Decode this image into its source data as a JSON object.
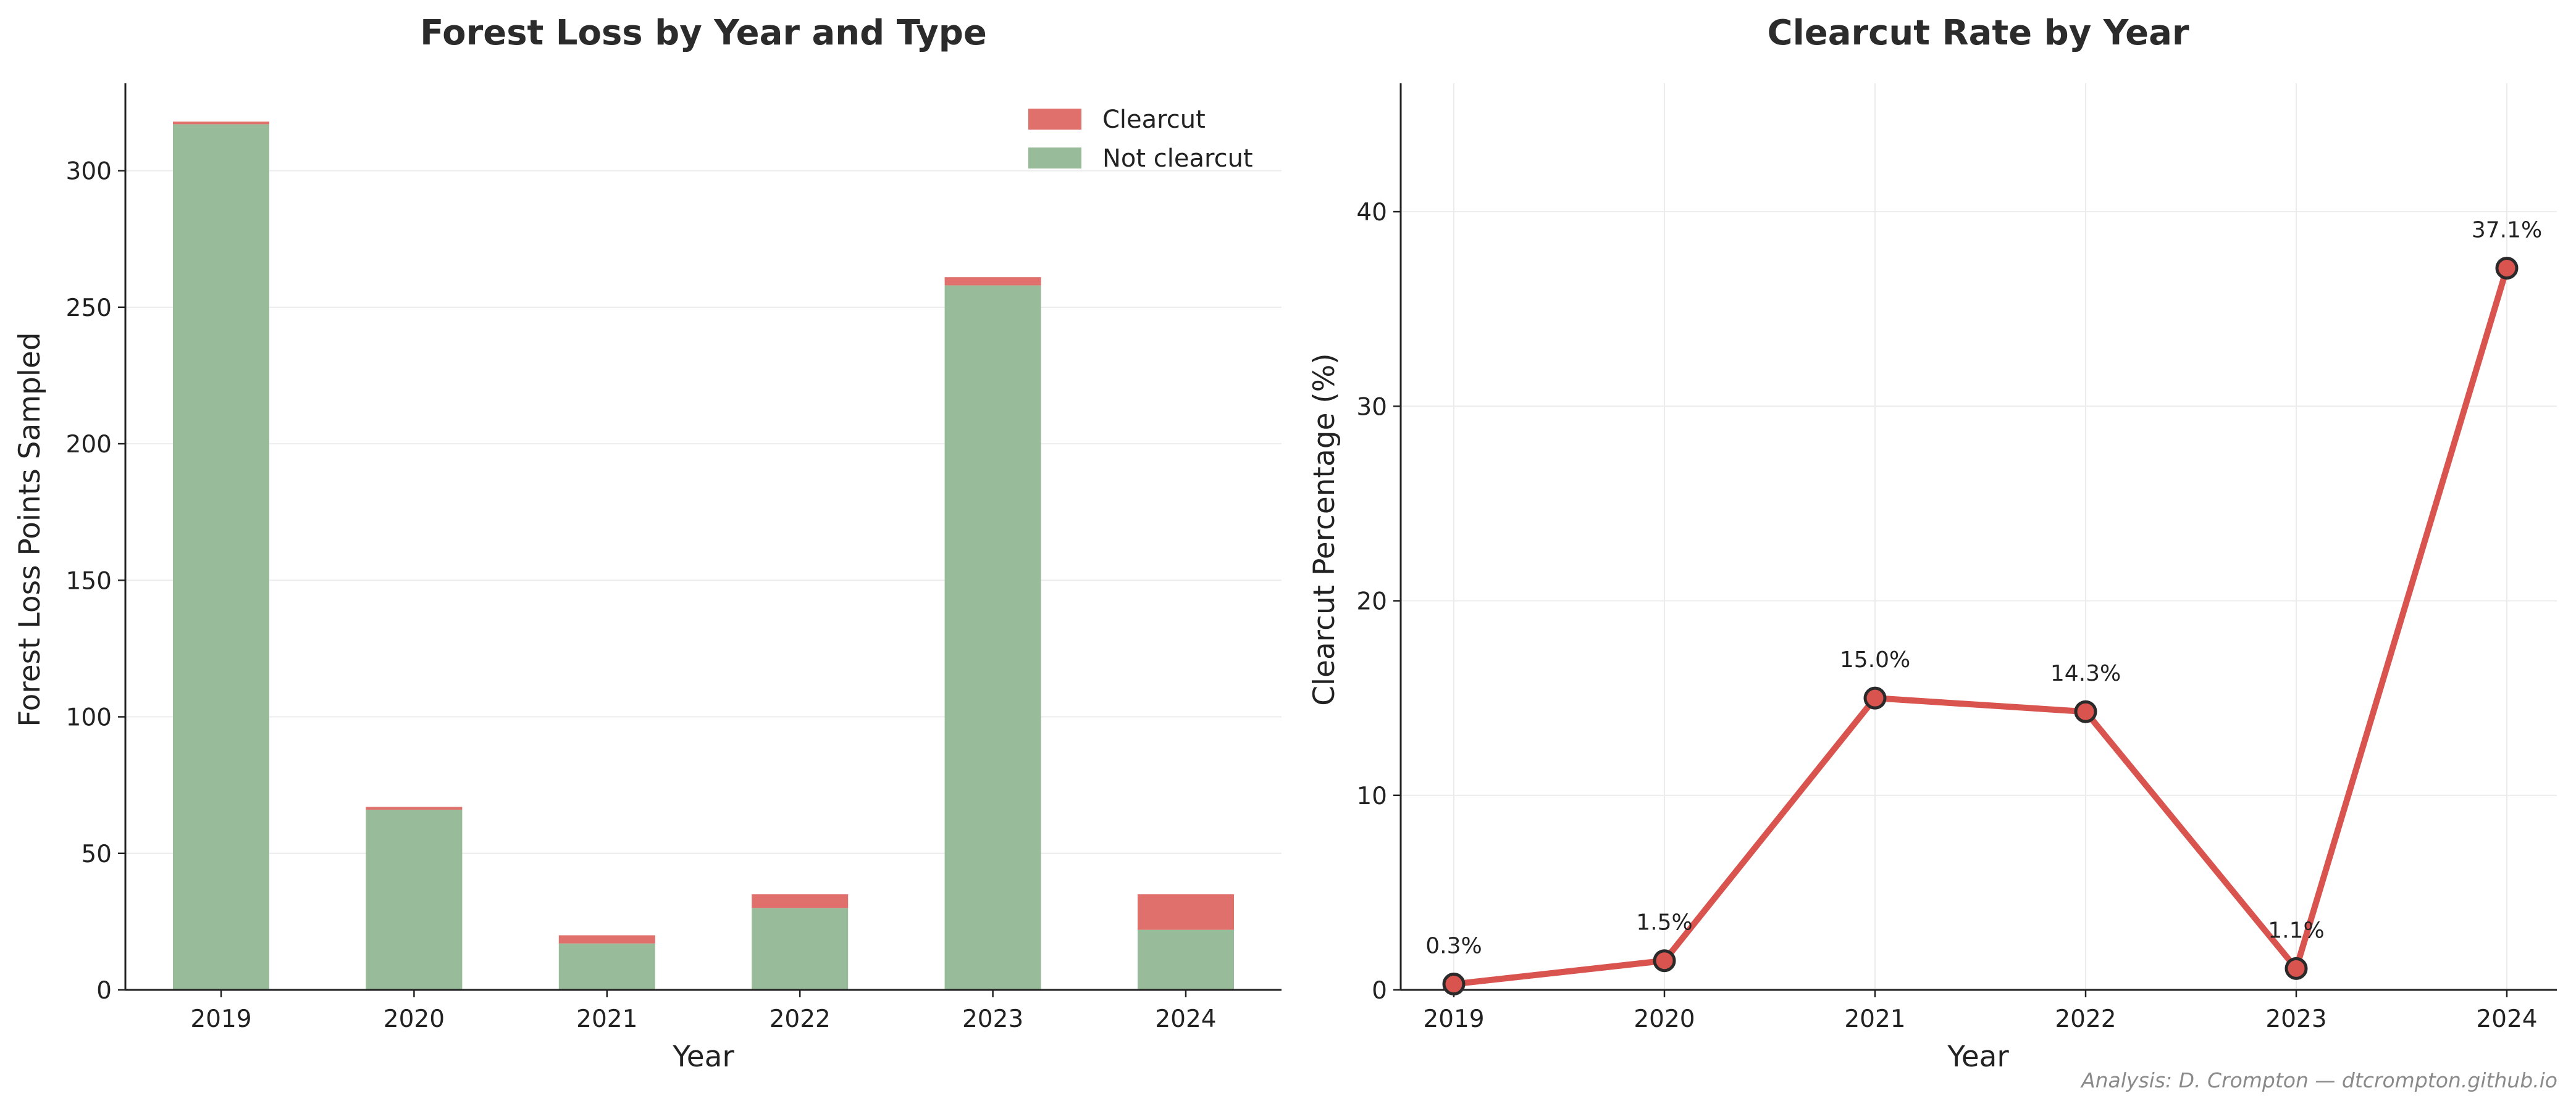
{
  "chart_data": [
    {
      "type": "bar",
      "stacked": true,
      "title": "Forest Loss by Year and Type",
      "xlabel": "Year",
      "ylabel": "Forest Loss Points Sampled",
      "categories": [
        "2019",
        "2020",
        "2021",
        "2022",
        "2023",
        "2024"
      ],
      "series": [
        {
          "name": "Not clearcut",
          "values": [
            317,
            66,
            17,
            30,
            258,
            22
          ],
          "color": "#98bb99"
        },
        {
          "name": "Clearcut",
          "values": [
            1,
            1,
            3,
            5,
            3,
            13
          ],
          "color": "#e0706b"
        }
      ],
      "ylim": [
        0,
        332
      ],
      "yticks": [
        0,
        50,
        100,
        150,
        200,
        250,
        300
      ],
      "grid": "y",
      "legend": "top-right"
    },
    {
      "type": "line",
      "title": "Clearcut Rate by Year",
      "xlabel": "Year",
      "ylabel": "Clearcut Percentage (%)",
      "x": [
        "2019",
        "2020",
        "2021",
        "2022",
        "2023",
        "2024"
      ],
      "series": [
        {
          "values": [
            0.3,
            1.5,
            15.0,
            14.3,
            1.1,
            37.1
          ],
          "color": "#d9534f"
        }
      ],
      "data_labels": [
        "0.3%",
        "1.5%",
        "15.0%",
        "14.3%",
        "1.1%",
        "37.1%"
      ],
      "ylim": [
        0,
        46.6
      ],
      "yticks": [
        0,
        10,
        20,
        30,
        40
      ],
      "grid": "both"
    }
  ],
  "footer": "Analysis: D. Crompton — dtcrompton.github.io"
}
